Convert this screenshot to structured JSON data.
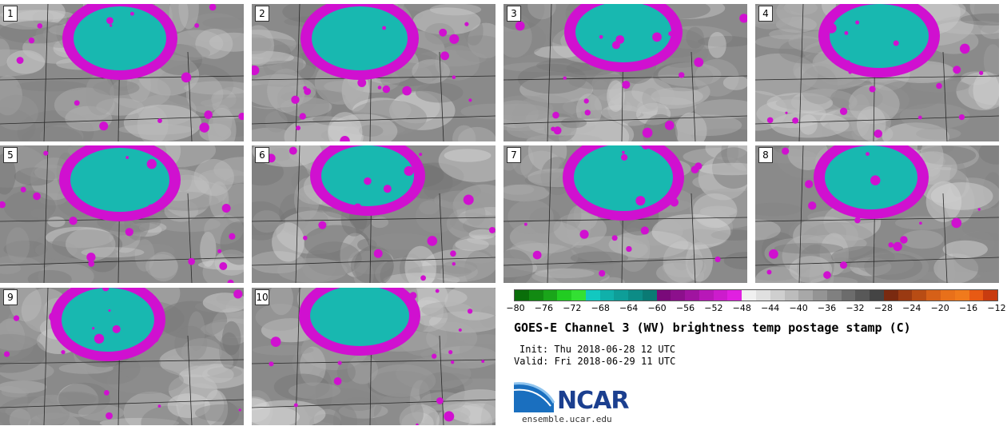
{
  "panels": [
    {
      "label": "1"
    },
    {
      "label": "2"
    },
    {
      "label": "3"
    },
    {
      "label": "4"
    },
    {
      "label": "5"
    },
    {
      "label": "6"
    },
    {
      "label": "7"
    },
    {
      "label": "8"
    },
    {
      "label": "9"
    },
    {
      "label": "10"
    }
  ],
  "colorbar": {
    "tick_labels": [
      "−80",
      "−76",
      "−72",
      "−68",
      "−64",
      "−60",
      "−56",
      "−52",
      "−48",
      "−44",
      "−40",
      "−36",
      "−32",
      "−28",
      "−24",
      "−20",
      "−16",
      "−12"
    ],
    "colors": [
      "#0a6e0a",
      "#128a12",
      "#1aa51a",
      "#22cc22",
      "#33e033",
      "#12c8c0",
      "#10b0aa",
      "#0e9e98",
      "#0c8c86",
      "#0a7a74",
      "#7a0a7a",
      "#8c108c",
      "#a014a0",
      "#b818b8",
      "#cc1ccc",
      "#e020e0",
      "#f0f0f0",
      "#e0e0e0",
      "#cfcfcf",
      "#bcbcbc",
      "#a8a8a8",
      "#949494",
      "#808080",
      "#6c6c6c",
      "#585858",
      "#444444",
      "#7a2a10",
      "#9a3a12",
      "#b84c14",
      "#d66018",
      "#e8701a",
      "#f07a1c",
      "#e85a14",
      "#c83c10"
    ]
  },
  "title": "GOES-E Channel 3 (WV) brightness temp postage stamp (C)",
  "init": {
    "label": "Init:",
    "value": "Thu 2018-06-28 12 UTC"
  },
  "valid": {
    "label": "Valid:",
    "value": "Fri 2018-06-29 11 UTC"
  },
  "logo": {
    "text": "NCAR",
    "site": "ensemble.ucar.edu"
  },
  "colors": {
    "cyan_core": "#18b8b0",
    "magenta_edge": "#d010d0",
    "gray_bg": "#8a8a8a"
  }
}
